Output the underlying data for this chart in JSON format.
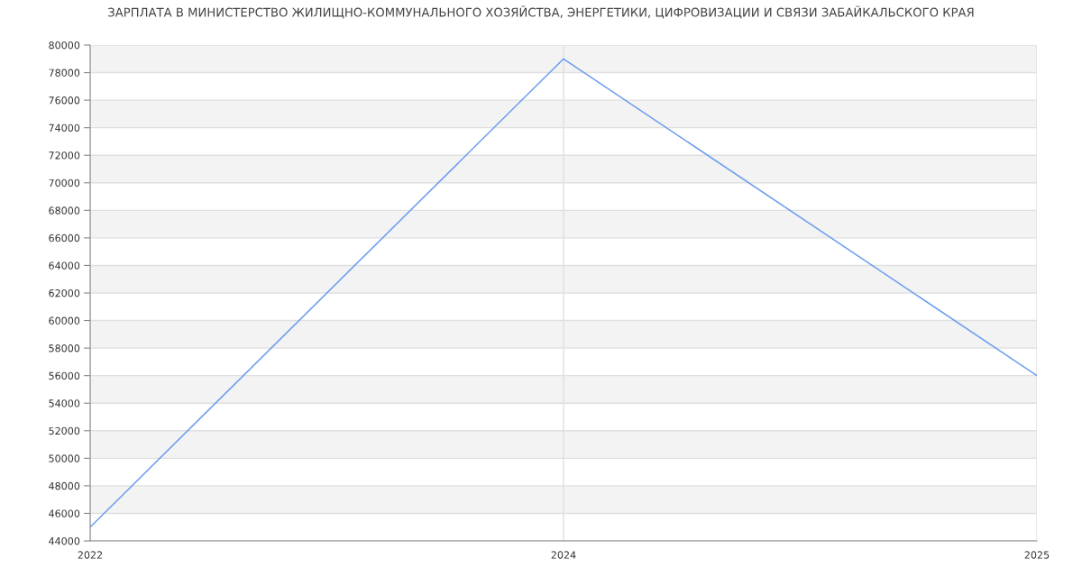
{
  "chart_data": {
    "type": "line",
    "title": "ЗАРПЛАТА В МИНИСТЕРСТВО ЖИЛИЩНО-КОММУНАЛЬНОГО ХОЗЯЙСТВА, ЭНЕРГЕТИКИ, ЦИФРОВИЗАЦИИ И СВЯЗИ ЗАБАЙКАЛЬСКОГО КРАЯ",
    "categories": [
      "2022",
      "2024",
      "2025"
    ],
    "series": [
      {
        "color": "#6b9cf0",
        "values": [
          45000,
          79000,
          56000
        ]
      }
    ],
    "ylim": [
      44000,
      80000
    ],
    "yticks": [
      44000,
      46000,
      48000,
      50000,
      52000,
      54000,
      56000,
      58000,
      60000,
      62000,
      64000,
      66000,
      68000,
      70000,
      72000,
      74000,
      76000,
      78000,
      80000
    ],
    "grid": true,
    "marker": "none",
    "line_style": "solid"
  }
}
